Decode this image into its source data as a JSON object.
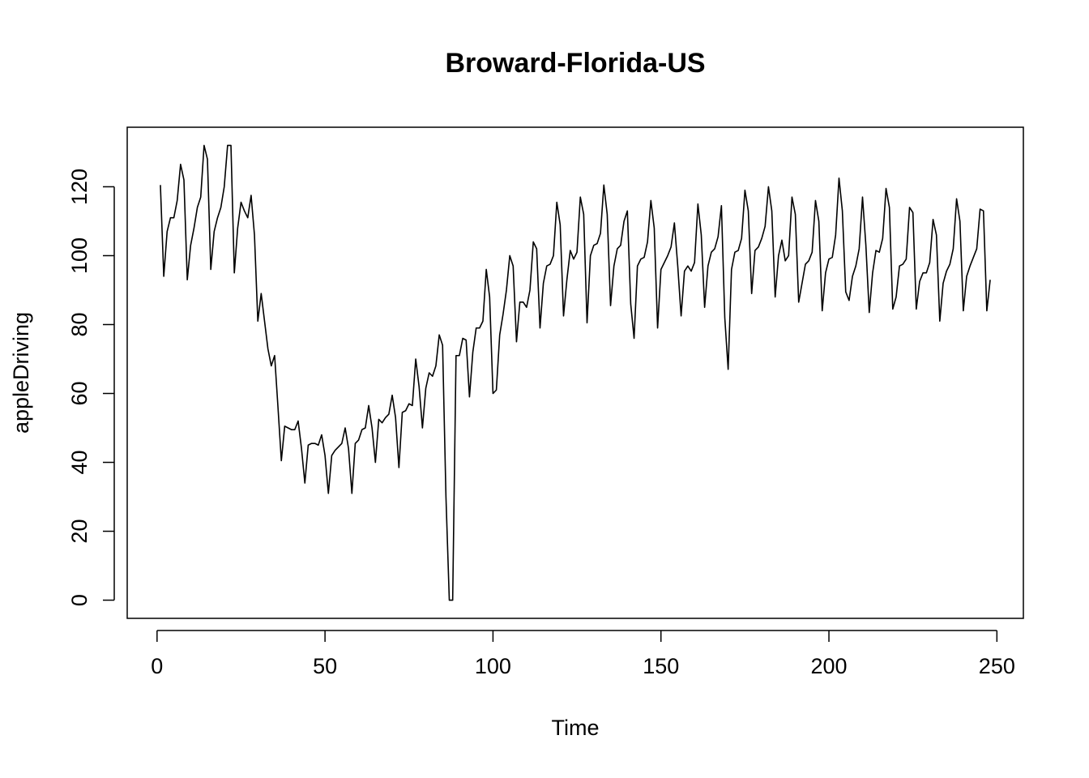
{
  "chart_data": {
    "type": "line",
    "title": "Broward-Florida-US",
    "x_label": "Time",
    "y_label": "appleDriving",
    "x": [
      1,
      2,
      3,
      4,
      5,
      6,
      7,
      8,
      9,
      10,
      11,
      12,
      13,
      14,
      15,
      16,
      17,
      18,
      19,
      20,
      21,
      22,
      23,
      24,
      25,
      26,
      27,
      28,
      29,
      30,
      31,
      32,
      33,
      34,
      35,
      36,
      37,
      38,
      39,
      40,
      41,
      42,
      43,
      44,
      45,
      46,
      47,
      48,
      49,
      50,
      51,
      52,
      53,
      54,
      55,
      56,
      57,
      58,
      59,
      60,
      61,
      62,
      63,
      64,
      65,
      66,
      67,
      68,
      69,
      70,
      71,
      72,
      73,
      74,
      75,
      76,
      77,
      78,
      79,
      80,
      81,
      82,
      83,
      84,
      85,
      86,
      87,
      88,
      89,
      90,
      91,
      92,
      93,
      94,
      95,
      96,
      97,
      98,
      99,
      100,
      101,
      102,
      103,
      104,
      105,
      106,
      107,
      108,
      109,
      110,
      111,
      112,
      113,
      114,
      115,
      116,
      117,
      118,
      119,
      120,
      121,
      122,
      123,
      124,
      125,
      126,
      127,
      128,
      129,
      130,
      131,
      132,
      133,
      134,
      135,
      136,
      137,
      138,
      139,
      140,
      141,
      142,
      143,
      144,
      145,
      146,
      147,
      148,
      149,
      150,
      151,
      152,
      153,
      154,
      155,
      156,
      157,
      158,
      159,
      160,
      161,
      162,
      163,
      164,
      165,
      166,
      167,
      168,
      169,
      170,
      171,
      172,
      173,
      174,
      175,
      176,
      177,
      178,
      179,
      180,
      181,
      182,
      183,
      184,
      185,
      186,
      187,
      188,
      189,
      190,
      191,
      192,
      193,
      194,
      195,
      196,
      197,
      198,
      199,
      200,
      201,
      202,
      203,
      204,
      205,
      206,
      207,
      208,
      209,
      210,
      211,
      212,
      213,
      214,
      215,
      216,
      217,
      218,
      219,
      220,
      221,
      222,
      223,
      224,
      225,
      226,
      227,
      228,
      229,
      230,
      231,
      232,
      233,
      234,
      235,
      236,
      237,
      238,
      239,
      240,
      241,
      242,
      243,
      244,
      245,
      246,
      247,
      248
    ],
    "values": [
      120.5,
      94,
      107,
      111,
      111,
      116,
      126.5,
      122,
      93,
      103,
      108,
      114,
      117,
      132,
      128,
      96,
      107,
      111,
      114,
      120,
      132,
      132,
      95,
      108,
      115.5,
      113,
      111,
      117.5,
      106,
      81,
      89,
      81,
      73,
      68,
      71,
      56,
      40.5,
      50.5,
      50,
      49.5,
      49.5,
      52,
      44,
      34,
      45,
      45.5,
      45.5,
      45,
      48,
      42,
      31,
      42,
      43.5,
      44.5,
      45.5,
      50,
      44,
      31,
      45.5,
      46.5,
      49.5,
      50,
      56.5,
      50,
      40,
      52.5,
      51.5,
      53,
      54,
      59.5,
      53,
      38.5,
      54.5,
      55,
      57,
      56.5,
      70,
      62,
      50,
      61.5,
      66,
      65,
      68,
      77,
      74,
      30,
      0,
      0,
      71,
      71,
      76,
      75.5,
      59,
      72,
      79,
      79,
      81,
      96,
      88,
      60,
      61,
      77,
      83,
      90,
      100,
      97,
      75,
      86.5,
      86.5,
      85,
      90,
      104,
      102,
      79,
      92,
      97,
      97.5,
      100,
      115.5,
      109,
      82.5,
      93,
      101.5,
      99,
      101,
      117,
      112,
      80.5,
      100,
      103,
      103.5,
      106.5,
      120.5,
      112,
      85.5,
      97,
      102,
      103,
      110,
      113,
      86,
      76,
      97,
      99,
      99.5,
      104,
      116,
      108,
      79,
      96,
      98,
      100,
      102.5,
      109.5,
      97,
      82.5,
      95.5,
      97,
      95.5,
      98,
      115,
      106,
      85,
      97,
      101,
      102,
      105.5,
      114.5,
      82,
      67,
      96,
      101,
      101.5,
      105,
      119,
      113,
      89,
      101.5,
      102.5,
      105,
      108.5,
      120,
      113,
      88,
      100,
      104.5,
      98.5,
      100,
      117,
      112,
      86.5,
      92,
      97.5,
      98.5,
      101,
      116,
      110,
      84,
      95,
      99,
      99.5,
      106,
      122.5,
      113,
      89.5,
      87,
      94,
      97,
      102,
      117,
      103,
      83.5,
      95,
      101.5,
      101,
      105,
      119.5,
      114,
      84.5,
      88,
      97,
      97.5,
      99,
      114,
      112.5,
      84.5,
      92.5,
      95,
      95,
      98,
      110.5,
      106,
      81,
      92,
      95.5,
      97.5,
      102,
      116.5,
      110,
      84,
      94,
      97,
      99.5,
      102,
      113.5,
      113,
      84,
      93
    ],
    "color": "#000000",
    "xlim": [
      -8.88,
      257.88
    ],
    "xticks": [
      0,
      50,
      100,
      150,
      200,
      250
    ],
    "ylim": [
      -5.28,
      137.28
    ],
    "yticks": [
      0,
      20,
      40,
      60,
      80,
      100,
      120
    ],
    "grid": false
  }
}
